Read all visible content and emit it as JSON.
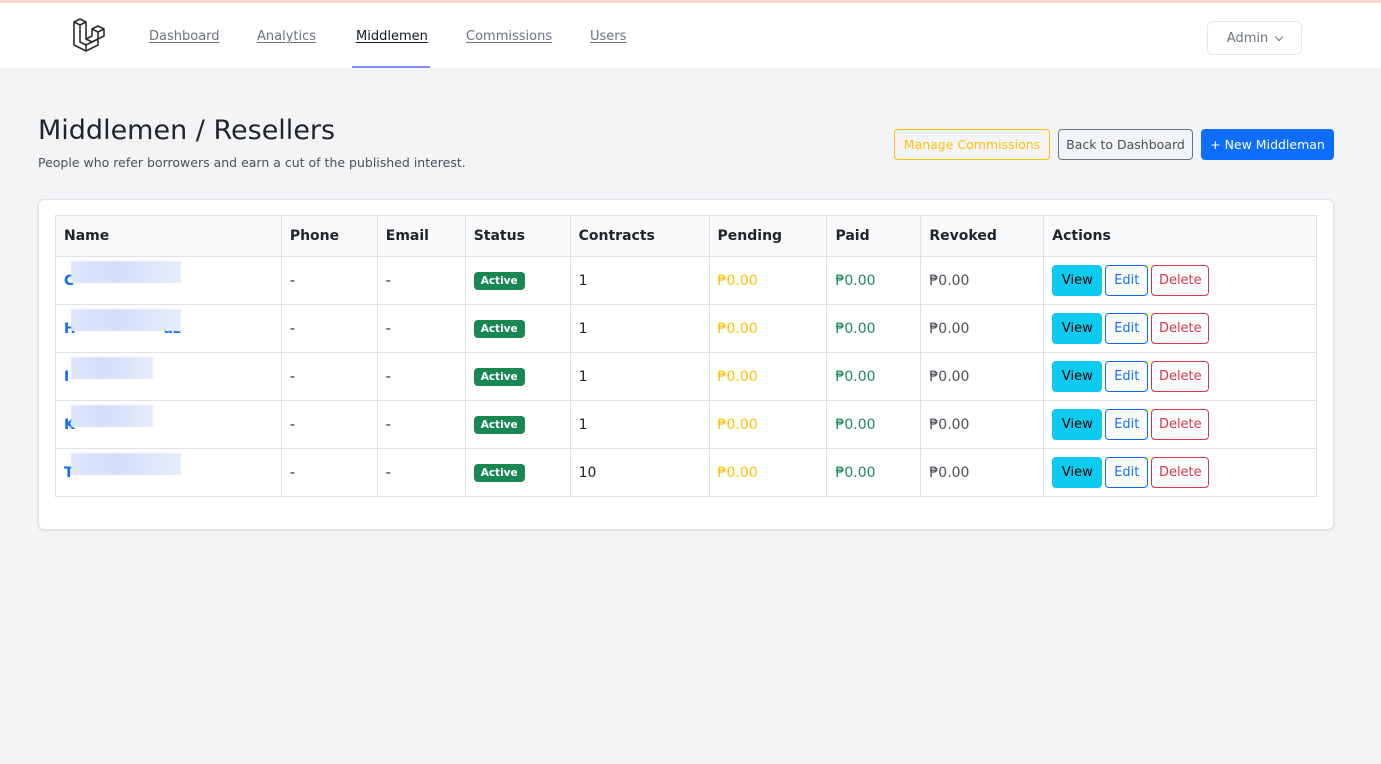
{
  "nav": {
    "items": [
      {
        "label": "Dashboard",
        "active": false
      },
      {
        "label": "Analytics",
        "active": false
      },
      {
        "label": "Middlemen",
        "active": true
      },
      {
        "label": "Commissions",
        "active": false
      },
      {
        "label": "Users",
        "active": false
      }
    ],
    "user_menu": "Admin",
    "logo_icon": "laravel-logo-icon"
  },
  "page": {
    "title": "Middlemen / Resellers",
    "subtitle": "People who refer borrowers and earn a cut of the published interest."
  },
  "toolbar": {
    "manage_label": "Manage Commissions",
    "back_label": "Back to Dashboard",
    "new_label": "+ New Middleman"
  },
  "table": {
    "columns": [
      "Name",
      "Phone",
      "Email",
      "Status",
      "Contracts",
      "Pending",
      "Paid",
      "Revoked",
      "Actions"
    ],
    "rows": [
      {
        "name": "C",
        "phone": "-",
        "email": "-",
        "status": "Active",
        "contracts": "1",
        "pending": "₱0.00",
        "paid": "₱0.00",
        "revoked": "₱0.00"
      },
      {
        "name": "H                  az",
        "phone": "-",
        "email": "-",
        "status": "Active",
        "contracts": "1",
        "pending": "₱0.00",
        "paid": "₱0.00",
        "revoked": "₱0.00"
      },
      {
        "name": "I",
        "phone": "-",
        "email": "-",
        "status": "Active",
        "contracts": "1",
        "pending": "₱0.00",
        "paid": "₱0.00",
        "revoked": "₱0.00"
      },
      {
        "name": "K",
        "phone": "-",
        "email": "-",
        "status": "Active",
        "contracts": "1",
        "pending": "₱0.00",
        "paid": "₱0.00",
        "revoked": "₱0.00"
      },
      {
        "name": "T",
        "phone": "-",
        "email": "-",
        "status": "Active",
        "contracts": "10",
        "pending": "₱0.00",
        "paid": "₱0.00",
        "revoked": "₱0.00"
      }
    ],
    "actions": {
      "view": "View",
      "edit": "Edit",
      "delete": "Delete"
    }
  },
  "colors": {
    "primary": "#0d6efd",
    "info": "#0dcaf0",
    "warning": "#ffc107",
    "success": "#198754",
    "danger": "#dc3545"
  }
}
